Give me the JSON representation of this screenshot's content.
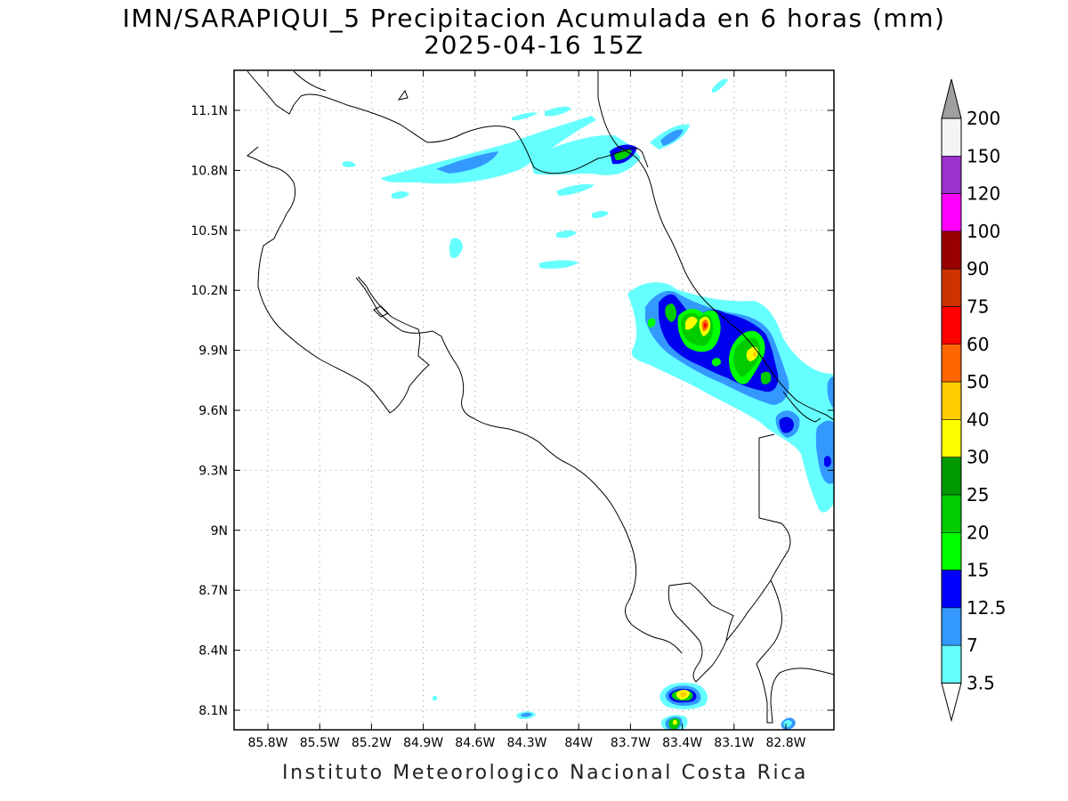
{
  "header": {
    "title": "IMN/SARAPIQUI_5 Precipitacion Acumulada en 6 horas (mm)",
    "valid_time": "2025-04-16 15Z"
  },
  "map": {
    "lat_ticks": [
      "11.1N",
      "10.8N",
      "10.5N",
      "10.2N",
      "9.9N",
      "9.6N",
      "9.3N",
      "9N",
      "8.7N",
      "8.4N",
      "8.1N"
    ],
    "lon_ticks": [
      "85.8W",
      "85.5W",
      "85.2W",
      "84.9W",
      "84.6W",
      "84.3W",
      "84W",
      "83.7W",
      "83.4W",
      "83.1W",
      "82.8W"
    ],
    "precip_colors": {
      "light_cyan": "#66ffff",
      "light_blue": "#3399ff",
      "blue": "#0000ee",
      "green_15": "#00ff00",
      "green_20": "#00cc00",
      "green_25": "#008800",
      "yellow_30": "#ffff00",
      "orange_40": "#ffcc00",
      "orange_50": "#ff6600",
      "red_60": "#ff0000"
    }
  },
  "colorbar": {
    "levels": [
      "200",
      "150",
      "120",
      "100",
      "90",
      "75",
      "60",
      "50",
      "40",
      "30",
      "25",
      "20",
      "15",
      "12.5",
      "7",
      "3.5"
    ],
    "colors": [
      "#f4f4f4",
      "#9933cc",
      "#ff00ff",
      "#990000",
      "#cc3300",
      "#ff0000",
      "#ff6600",
      "#ffcc00",
      "#ffff00",
      "#009900",
      "#00cc00",
      "#00ff00",
      "#0000ff",
      "#3399ff",
      "#66ffff"
    ],
    "top_arrow_color": "#a0a0a0"
  },
  "footer": {
    "credit": "Instituto Meteorologico Nacional Costa Rica"
  }
}
